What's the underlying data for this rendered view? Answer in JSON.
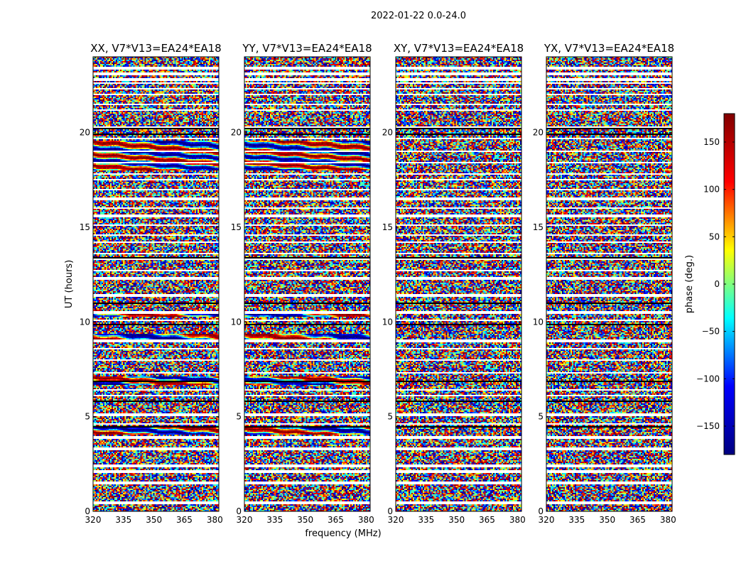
{
  "chart_data": {
    "type": "heatmap",
    "suptitle": "2022-01-22 0.0-24.0",
    "xlabel": "frequency (MHz)",
    "ylabel": "UT (hours)",
    "xlim": [
      320,
      382
    ],
    "ylim": [
      0,
      24
    ],
    "xticks": [
      320,
      335,
      350,
      365,
      380
    ],
    "yticks": [
      0,
      5,
      10,
      15,
      20
    ],
    "colorbar": {
      "label": "phase (deg.)",
      "vmin": -180,
      "vmax": 180,
      "ticks": [
        150,
        100,
        50,
        0,
        -50,
        -100,
        -150
      ],
      "tick_labels": [
        "150",
        "100",
        "50",
        "0",
        "−50",
        "−100",
        "−150"
      ],
      "cmap": "jet",
      "cmap_colors": [
        "#000080",
        "#0000ff",
        "#00ffff",
        "#ffff00",
        "#ff0000",
        "#800000"
      ]
    },
    "panels": [
      {
        "title": "XX, V7*V13=EA24*EA18"
      },
      {
        "title": "YY, V7*V13=EA24*EA18"
      },
      {
        "title": "XY, V7*V13=EA24*EA18"
      },
      {
        "title": "YX, V7*V13=EA24*EA18"
      }
    ]
  }
}
